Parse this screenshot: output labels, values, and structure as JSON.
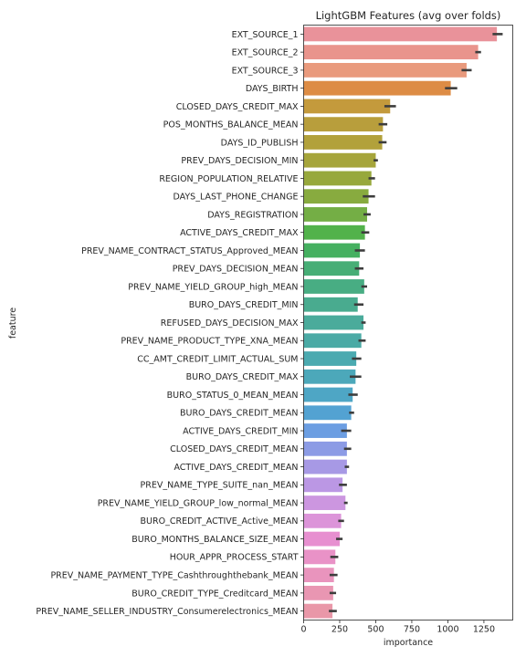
{
  "chart_data": {
    "type": "bar",
    "orientation": "horizontal",
    "title": "LightGBM Features (avg over folds)",
    "xlabel": "importance",
    "ylabel": "feature",
    "xlim": [
      0,
      1450
    ],
    "xticks": [
      0,
      250,
      500,
      750,
      1000,
      1250
    ],
    "grid": false,
    "categories": [
      "EXT_SOURCE_1",
      "EXT_SOURCE_2",
      "EXT_SOURCE_3",
      "DAYS_BIRTH",
      "CLOSED_DAYS_CREDIT_MAX",
      "POS_MONTHS_BALANCE_MEAN",
      "DAYS_ID_PUBLISH",
      "PREV_DAYS_DECISION_MIN",
      "REGION_POPULATION_RELATIVE",
      "DAYS_LAST_PHONE_CHANGE",
      "DAYS_REGISTRATION",
      "ACTIVE_DAYS_CREDIT_MAX",
      "PREV_NAME_CONTRACT_STATUS_Approved_MEAN",
      "PREV_DAYS_DECISION_MEAN",
      "PREV_NAME_YIELD_GROUP_high_MEAN",
      "BURO_DAYS_CREDIT_MIN",
      "REFUSED_DAYS_DECISION_MAX",
      "PREV_NAME_PRODUCT_TYPE_XNA_MEAN",
      "CC_AMT_CREDIT_LIMIT_ACTUAL_SUM",
      "BURO_DAYS_CREDIT_MAX",
      "BURO_STATUS_0_MEAN_MEAN",
      "BURO_DAYS_CREDIT_MEAN",
      "ACTIVE_DAYS_CREDIT_MIN",
      "CLOSED_DAYS_CREDIT_MEAN",
      "ACTIVE_DAYS_CREDIT_MEAN",
      "PREV_NAME_TYPE_SUITE_nan_MEAN",
      "PREV_NAME_YIELD_GROUP_low_normal_MEAN",
      "BURO_CREDIT_ACTIVE_Active_MEAN",
      "BURO_MONTHS_BALANCE_SIZE_MEAN",
      "HOUR_APPR_PROCESS_START",
      "PREV_NAME_PAYMENT_TYPE_Cashthroughthebank_MEAN",
      "BURO_CREDIT_TYPE_Creditcard_MEAN",
      "PREV_NAME_SELLER_INDUSTRY_Consumerelectronics_MEAN"
    ],
    "values": [
      1340,
      1210,
      1130,
      1020,
      600,
      550,
      545,
      500,
      470,
      450,
      440,
      425,
      390,
      385,
      420,
      375,
      415,
      400,
      365,
      360,
      340,
      330,
      300,
      300,
      300,
      270,
      290,
      260,
      250,
      220,
      210,
      205,
      200
    ],
    "error_low": [
      1310,
      1190,
      1095,
      980,
      560,
      520,
      520,
      485,
      450,
      410,
      415,
      400,
      355,
      355,
      400,
      350,
      400,
      380,
      335,
      320,
      310,
      315,
      260,
      280,
      285,
      245,
      280,
      240,
      225,
      185,
      180,
      180,
      175
    ],
    "error_high": [
      1380,
      1230,
      1165,
      1065,
      640,
      580,
      575,
      515,
      495,
      495,
      465,
      455,
      425,
      415,
      440,
      415,
      430,
      430,
      400,
      400,
      375,
      350,
      330,
      330,
      315,
      300,
      305,
      280,
      270,
      240,
      235,
      225,
      230
    ],
    "colors": [
      "#e9929a",
      "#e9948c",
      "#e99a7d",
      "#dd8c45",
      "#c49a3c",
      "#b89e3c",
      "#b2a13b",
      "#a6a53b",
      "#97a83c",
      "#88ab3f",
      "#74ae45",
      "#52b24b",
      "#45b060",
      "#47ae76",
      "#48ad83",
      "#49ab8f",
      "#4aab9b",
      "#4aaaa5",
      "#4baab0",
      "#4ca8ba",
      "#4ea6c5",
      "#53a2d2",
      "#6c9ee2",
      "#8c9be5",
      "#a799e5",
      "#bb97e4",
      "#cc96e0",
      "#dc94d9",
      "#e78fd0",
      "#e992c7",
      "#e994bd",
      "#e996b2",
      "#e997a8"
    ]
  }
}
